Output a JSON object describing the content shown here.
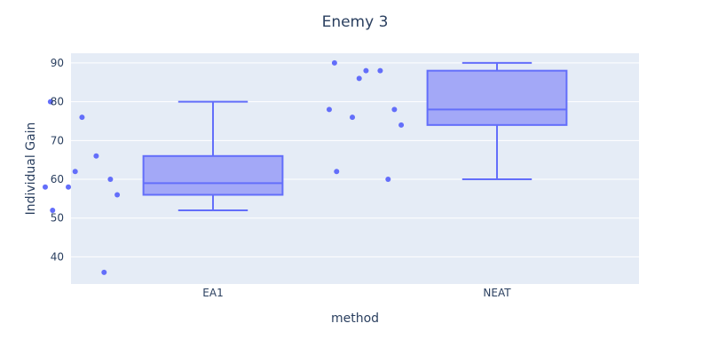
{
  "chart_data": {
    "type": "box",
    "title": "Enemy 3",
    "xlabel": "method",
    "ylabel": "Individual Gain",
    "ylim": [
      33,
      92.5
    ],
    "yticks": [
      40,
      50,
      60,
      70,
      80,
      90
    ],
    "grid": true,
    "legend": "none",
    "categories": [
      "EA1",
      "NEAT"
    ],
    "boxes": [
      {
        "category": "EA1",
        "min": 52,
        "q1": 56,
        "median": 59,
        "q3": 66,
        "max": 80,
        "points": [
          80,
          76,
          66,
          62,
          60,
          58,
          58,
          56,
          52,
          36
        ]
      },
      {
        "category": "NEAT",
        "min": 60,
        "q1": 74,
        "median": 78,
        "q3": 88,
        "max": 90,
        "points": [
          90,
          88,
          88,
          86,
          78,
          78,
          76,
          74,
          62,
          60
        ]
      }
    ],
    "colors": {
      "box_line": "#636efa",
      "box_fill": "#a3a8f7",
      "point": "#636efa",
      "plot_bg": "#e5ecf6",
      "grid": "#ffffff"
    }
  }
}
